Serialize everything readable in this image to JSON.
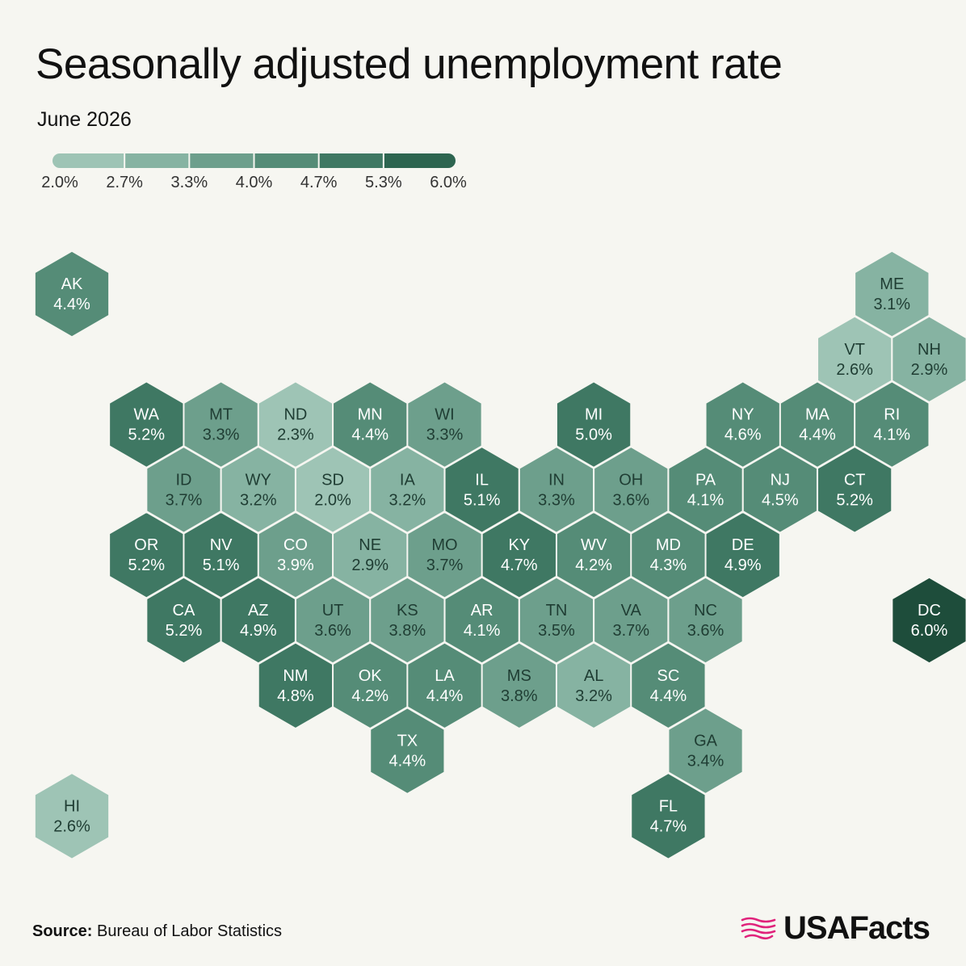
{
  "title": "Seasonally adjusted unemployment rate",
  "subtitle": "June 2026",
  "legend": {
    "ticks": [
      "2.0%",
      "2.7%",
      "3.3%",
      "4.0%",
      "4.7%",
      "5.3%",
      "6.0%"
    ],
    "colors": [
      "#9ec4b5",
      "#86b3a2",
      "#6d9f8c",
      "#558c77",
      "#3f7863",
      "#2d6550",
      "#1e4d3b"
    ]
  },
  "states": [
    {
      "abbr": "AK",
      "value": 4.4,
      "label": "4.4%"
    },
    {
      "abbr": "ME",
      "value": 3.1,
      "label": "3.1%"
    },
    {
      "abbr": "VT",
      "value": 2.6,
      "label": "2.6%"
    },
    {
      "abbr": "NH",
      "value": 2.9,
      "label": "2.9%"
    },
    {
      "abbr": "WA",
      "value": 5.2,
      "label": "5.2%"
    },
    {
      "abbr": "MT",
      "value": 3.3,
      "label": "3.3%"
    },
    {
      "abbr": "ND",
      "value": 2.3,
      "label": "2.3%"
    },
    {
      "abbr": "MN",
      "value": 4.4,
      "label": "4.4%"
    },
    {
      "abbr": "WI",
      "value": 3.3,
      "label": "3.3%"
    },
    {
      "abbr": "MI",
      "value": 5.0,
      "label": "5.0%"
    },
    {
      "abbr": "NY",
      "value": 4.6,
      "label": "4.6%"
    },
    {
      "abbr": "MA",
      "value": 4.4,
      "label": "4.4%"
    },
    {
      "abbr": "RI",
      "value": 4.1,
      "label": "4.1%"
    },
    {
      "abbr": "ID",
      "value": 3.7,
      "label": "3.7%"
    },
    {
      "abbr": "WY",
      "value": 3.2,
      "label": "3.2%"
    },
    {
      "abbr": "SD",
      "value": 2.0,
      "label": "2.0%"
    },
    {
      "abbr": "IA",
      "value": 3.2,
      "label": "3.2%"
    },
    {
      "abbr": "IL",
      "value": 5.1,
      "label": "5.1%"
    },
    {
      "abbr": "IN",
      "value": 3.3,
      "label": "3.3%"
    },
    {
      "abbr": "OH",
      "value": 3.6,
      "label": "3.6%"
    },
    {
      "abbr": "PA",
      "value": 4.1,
      "label": "4.1%"
    },
    {
      "abbr": "NJ",
      "value": 4.5,
      "label": "4.5%"
    },
    {
      "abbr": "CT",
      "value": 5.2,
      "label": "5.2%"
    },
    {
      "abbr": "OR",
      "value": 5.2,
      "label": "5.2%"
    },
    {
      "abbr": "NV",
      "value": 5.1,
      "label": "5.1%"
    },
    {
      "abbr": "CO",
      "value": 3.9,
      "label": "3.9%"
    },
    {
      "abbr": "NE",
      "value": 2.9,
      "label": "2.9%"
    },
    {
      "abbr": "MO",
      "value": 3.7,
      "label": "3.7%"
    },
    {
      "abbr": "KY",
      "value": 4.7,
      "label": "4.7%"
    },
    {
      "abbr": "WV",
      "value": 4.2,
      "label": "4.2%"
    },
    {
      "abbr": "MD",
      "value": 4.3,
      "label": "4.3%"
    },
    {
      "abbr": "DE",
      "value": 4.9,
      "label": "4.9%"
    },
    {
      "abbr": "CA",
      "value": 5.2,
      "label": "5.2%"
    },
    {
      "abbr": "AZ",
      "value": 4.9,
      "label": "4.9%"
    },
    {
      "abbr": "UT",
      "value": 3.6,
      "label": "3.6%"
    },
    {
      "abbr": "KS",
      "value": 3.8,
      "label": "3.8%"
    },
    {
      "abbr": "AR",
      "value": 4.1,
      "label": "4.1%"
    },
    {
      "abbr": "TN",
      "value": 3.5,
      "label": "3.5%"
    },
    {
      "abbr": "VA",
      "value": 3.7,
      "label": "3.7%"
    },
    {
      "abbr": "NC",
      "value": 3.6,
      "label": "3.6%"
    },
    {
      "abbr": "DC",
      "value": 6.0,
      "label": "6.0%"
    },
    {
      "abbr": "NM",
      "value": 4.8,
      "label": "4.8%"
    },
    {
      "abbr": "OK",
      "value": 4.2,
      "label": "4.2%"
    },
    {
      "abbr": "LA",
      "value": 4.4,
      "label": "4.4%"
    },
    {
      "abbr": "MS",
      "value": 3.8,
      "label": "3.8%"
    },
    {
      "abbr": "AL",
      "value": 3.2,
      "label": "3.2%"
    },
    {
      "abbr": "SC",
      "value": 4.4,
      "label": "4.4%"
    },
    {
      "abbr": "TX",
      "value": 4.4,
      "label": "4.4%"
    },
    {
      "abbr": "GA",
      "value": 3.4,
      "label": "3.4%"
    },
    {
      "abbr": "HI",
      "value": 2.6,
      "label": "2.6%"
    },
    {
      "abbr": "FL",
      "value": 4.7,
      "label": "4.7%"
    }
  ],
  "source": {
    "label": "Source:",
    "text": " Bureau of Labor Statistics"
  },
  "brand": {
    "name": "USAFacts",
    "accent": "#e0227b"
  }
}
